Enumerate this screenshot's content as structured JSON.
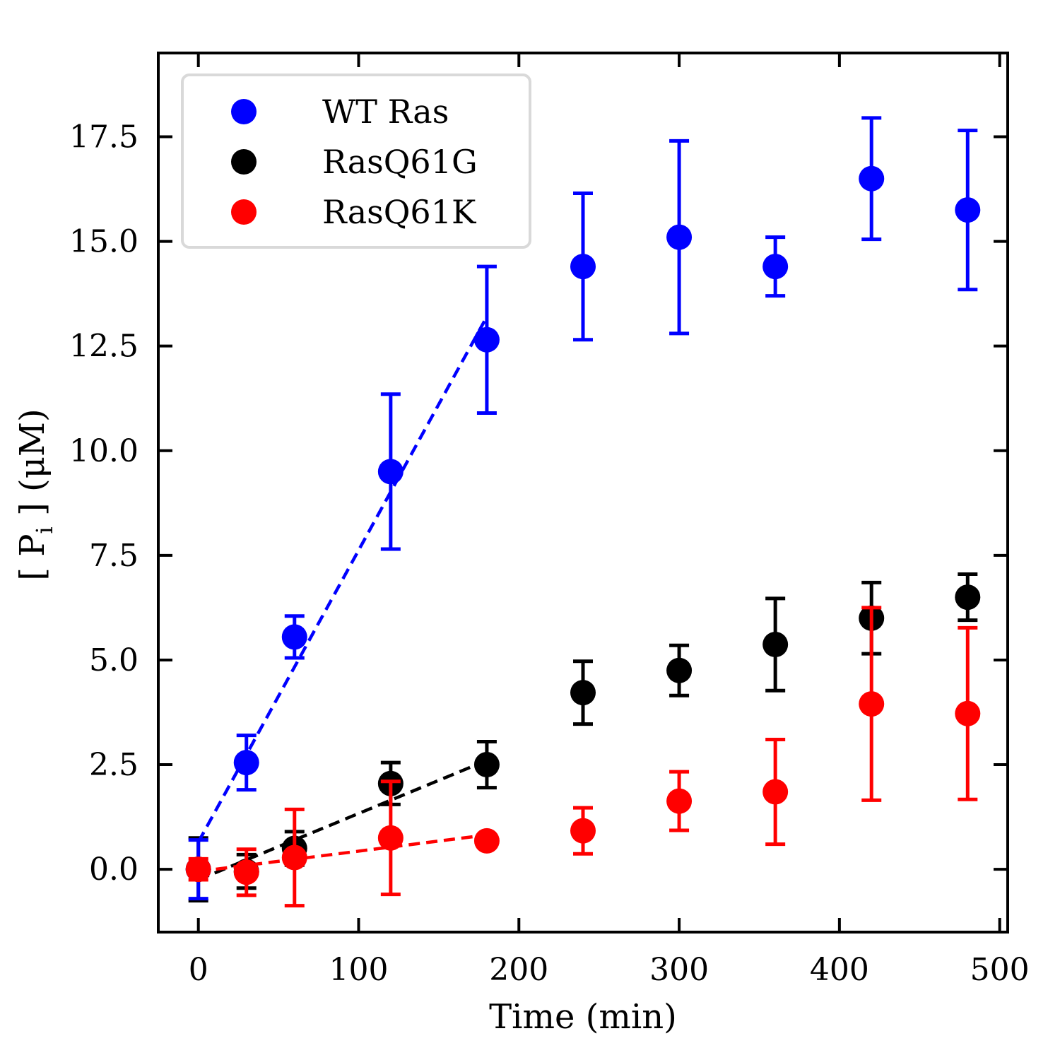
{
  "chart_data": {
    "type": "scatter",
    "xlabel": "Time (min)",
    "ylabel": {
      "prefix": "[ P",
      "subscript": "i",
      "suffix": " ] (μM)"
    },
    "xlim": [
      -25,
      505
    ],
    "ylim": [
      -1.5,
      19.5
    ],
    "x_ticks": [
      0,
      100,
      200,
      300,
      400,
      500
    ],
    "x_tick_labels": [
      "0",
      "100",
      "200",
      "300",
      "400",
      "500"
    ],
    "y_ticks": [
      0,
      2.5,
      5,
      7.5,
      10,
      12.5,
      15,
      17.5
    ],
    "y_tick_labels": [
      "0.0",
      "2.5",
      "5.0",
      "7.5",
      "10.0",
      "12.5",
      "15.0",
      "17.5"
    ],
    "grid": false,
    "legend_position": "top-left",
    "series": [
      {
        "name": "WT Ras",
        "color": "#0000ff",
        "x": [
          0,
          30,
          60,
          120,
          180,
          240,
          300,
          360,
          420,
          480
        ],
        "y": [
          0.0,
          2.55,
          5.55,
          9.5,
          12.65,
          14.4,
          15.1,
          14.4,
          16.5,
          15.75
        ],
        "err": [
          0.7,
          0.65,
          0.5,
          1.85,
          1.75,
          1.75,
          2.3,
          0.7,
          1.45,
          1.9
        ],
        "fit": {
          "x": [
            0,
            180
          ],
          "y": [
            0.65,
            13.2
          ]
        }
      },
      {
        "name": "RasQ61G",
        "color": "#000000",
        "x": [
          0,
          30,
          60,
          120,
          180,
          240,
          300,
          360,
          420,
          480
        ],
        "y": [
          0.0,
          -0.05,
          0.5,
          2.05,
          2.5,
          4.22,
          4.75,
          5.37,
          6.0,
          6.5
        ],
        "err": [
          0.75,
          0.4,
          0.4,
          0.5,
          0.55,
          0.75,
          0.6,
          1.1,
          0.85,
          0.55
        ],
        "fit": {
          "x": [
            0,
            180
          ],
          "y": [
            -0.25,
            2.6
          ]
        }
      },
      {
        "name": "RasQ61K",
        "color": "#ff0000",
        "x": [
          0,
          30,
          60,
          120,
          180,
          240,
          300,
          360,
          420,
          480
        ],
        "y": [
          0.0,
          -0.07,
          0.28,
          0.75,
          0.68,
          0.92,
          1.63,
          1.85,
          3.95,
          3.72
        ],
        "err": [
          0.25,
          0.55,
          1.15,
          1.35,
          0.12,
          0.55,
          0.7,
          1.25,
          2.3,
          2.05
        ],
        "fit": {
          "x": [
            0,
            180
          ],
          "y": [
            -0.05,
            0.82
          ]
        }
      }
    ]
  }
}
